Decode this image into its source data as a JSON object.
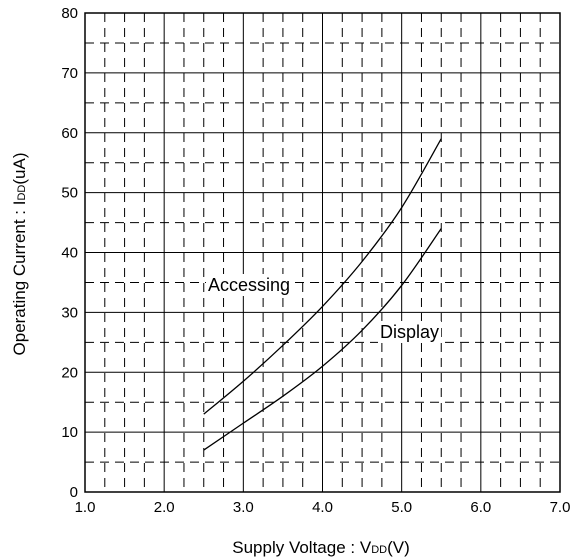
{
  "chart_data": {
    "type": "line",
    "xlabel": {
      "prefix": "Supply Voltage : V",
      "sub": "DD",
      "suffix": "(V)"
    },
    "ylabel": {
      "prefix": "Operating Current : I",
      "sub": "DD",
      "suffix": "(uA)"
    },
    "xlim": [
      1.0,
      7.0
    ],
    "ylim": [
      0,
      80
    ],
    "xticks": [
      "1.0",
      "2.0",
      "3.0",
      "4.0",
      "5.0",
      "6.0",
      "7.0"
    ],
    "yticks": [
      "0",
      "10",
      "20",
      "30",
      "40",
      "50",
      "60",
      "70",
      "80"
    ],
    "grid": true,
    "series": [
      {
        "name": "Accessing",
        "x": [
          2.5,
          3.0,
          3.5,
          4.0,
          4.5,
          5.0,
          5.5
        ],
        "y": [
          13,
          18.5,
          24.5,
          31,
          38.5,
          47.5,
          59
        ]
      },
      {
        "name": "Display",
        "x": [
          2.5,
          3.0,
          3.5,
          4.0,
          4.5,
          5.0,
          5.5
        ],
        "y": [
          7,
          11.5,
          16,
          21,
          27,
          34.5,
          44
        ]
      }
    ]
  }
}
